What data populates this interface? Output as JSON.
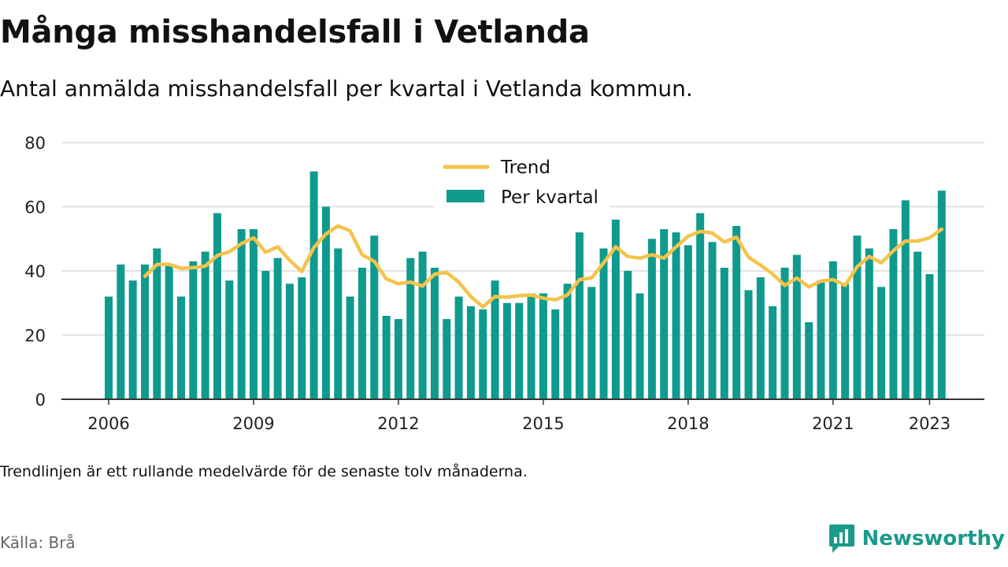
{
  "header": {
    "title": "Många misshandelsfall i Vetlanda",
    "subtitle": "Antal anmälda misshandelsfall per kvartal i Vetlanda kommun."
  },
  "footer": {
    "note": "Trendlinjen är ett rullande medelvärde för de senaste tolv månaderna.",
    "source": "Källa: Brå",
    "brand": "Newsworthy"
  },
  "colors": {
    "bars": "#0f9a8e",
    "trend": "#f5c34b",
    "grid": "#d9d9d9",
    "axis": "#333333",
    "brand": "#1a9a8a"
  },
  "chart_data": {
    "type": "bar",
    "title": "Många misshandelsfall i Vetlanda",
    "xlabel": "",
    "ylabel": "",
    "ylim": [
      0,
      80
    ],
    "yticks": [
      0,
      20,
      40,
      60,
      80
    ],
    "grid": true,
    "legend_position": "top-center",
    "x_ticks": [
      {
        "label": "2006",
        "year": 2006
      },
      {
        "label": "2009",
        "year": 2009
      },
      {
        "label": "2012",
        "year": 2012
      },
      {
        "label": "2015",
        "year": 2015
      },
      {
        "label": "2018",
        "year": 2018
      },
      {
        "label": "2021",
        "year": 2021
      },
      {
        "label": "2023",
        "year": 2023
      }
    ],
    "categories": [
      "2006 Q1",
      "2006 Q2",
      "2006 Q3",
      "2006 Q4",
      "2007 Q1",
      "2007 Q2",
      "2007 Q3",
      "2007 Q4",
      "2008 Q1",
      "2008 Q2",
      "2008 Q3",
      "2008 Q4",
      "2009 Q1",
      "2009 Q2",
      "2009 Q3",
      "2009 Q4",
      "2010 Q1",
      "2010 Q2",
      "2010 Q3",
      "2010 Q4",
      "2011 Q1",
      "2011 Q2",
      "2011 Q3",
      "2011 Q4",
      "2012 Q1",
      "2012 Q2",
      "2012 Q3",
      "2012 Q4",
      "2013 Q1",
      "2013 Q2",
      "2013 Q3",
      "2013 Q4",
      "2014 Q1",
      "2014 Q2",
      "2014 Q3",
      "2014 Q4",
      "2015 Q1",
      "2015 Q2",
      "2015 Q3",
      "2015 Q4",
      "2016 Q1",
      "2016 Q2",
      "2016 Q3",
      "2016 Q4",
      "2017 Q1",
      "2017 Q2",
      "2017 Q3",
      "2017 Q4",
      "2018 Q1",
      "2018 Q2",
      "2018 Q3",
      "2018 Q4",
      "2019 Q1",
      "2019 Q2",
      "2019 Q3",
      "2019 Q4",
      "2020 Q1",
      "2020 Q2",
      "2020 Q3",
      "2020 Q4",
      "2021 Q1",
      "2021 Q2",
      "2021 Q3",
      "2021 Q4",
      "2022 Q1",
      "2022 Q2",
      "2022 Q3",
      "2022 Q4",
      "2023 Q1",
      "2023 Q2"
    ],
    "series": [
      {
        "name": "Per kvartal",
        "type": "bar",
        "values": [
          32,
          42,
          37,
          42,
          47,
          42,
          32,
          43,
          46,
          58,
          37,
          53,
          53,
          40,
          44,
          36,
          38,
          71,
          60,
          47,
          32,
          41,
          51,
          26,
          25,
          44,
          46,
          41,
          25,
          32,
          29,
          28,
          37,
          30,
          30,
          33,
          33,
          28,
          36,
          52,
          35,
          47,
          56,
          40,
          33,
          50,
          53,
          52,
          48,
          58,
          49,
          41,
          54,
          34,
          38,
          29,
          41,
          45,
          24,
          37,
          43,
          36,
          51,
          47,
          35,
          53,
          62,
          46,
          39,
          65
        ]
      },
      {
        "name": "Trend",
        "type": "line",
        "values": [
          null,
          null,
          null,
          38.3,
          42,
          42,
          40.8,
          41,
          41.5,
          44.8,
          46,
          48.5,
          50.3,
          45.8,
          47.5,
          43.3,
          39.8,
          47.3,
          51.5,
          54,
          52.5,
          45,
          43,
          37.5,
          36,
          36.5,
          35.3,
          39,
          39.5,
          36.5,
          32,
          28.8,
          32,
          31.8,
          32.3,
          32.5,
          31.5,
          31,
          32.5,
          37.3,
          37.8,
          42.5,
          47.5,
          44.5,
          44,
          45,
          44,
          47.5,
          50.8,
          52.3,
          51.8,
          49,
          50.5,
          44.3,
          41.8,
          39,
          35.5,
          37.8,
          35,
          36.8,
          37.3,
          35.5,
          41.3,
          44.5,
          42.5,
          46.3,
          49.3,
          49.3,
          50.3,
          53
        ]
      }
    ]
  }
}
